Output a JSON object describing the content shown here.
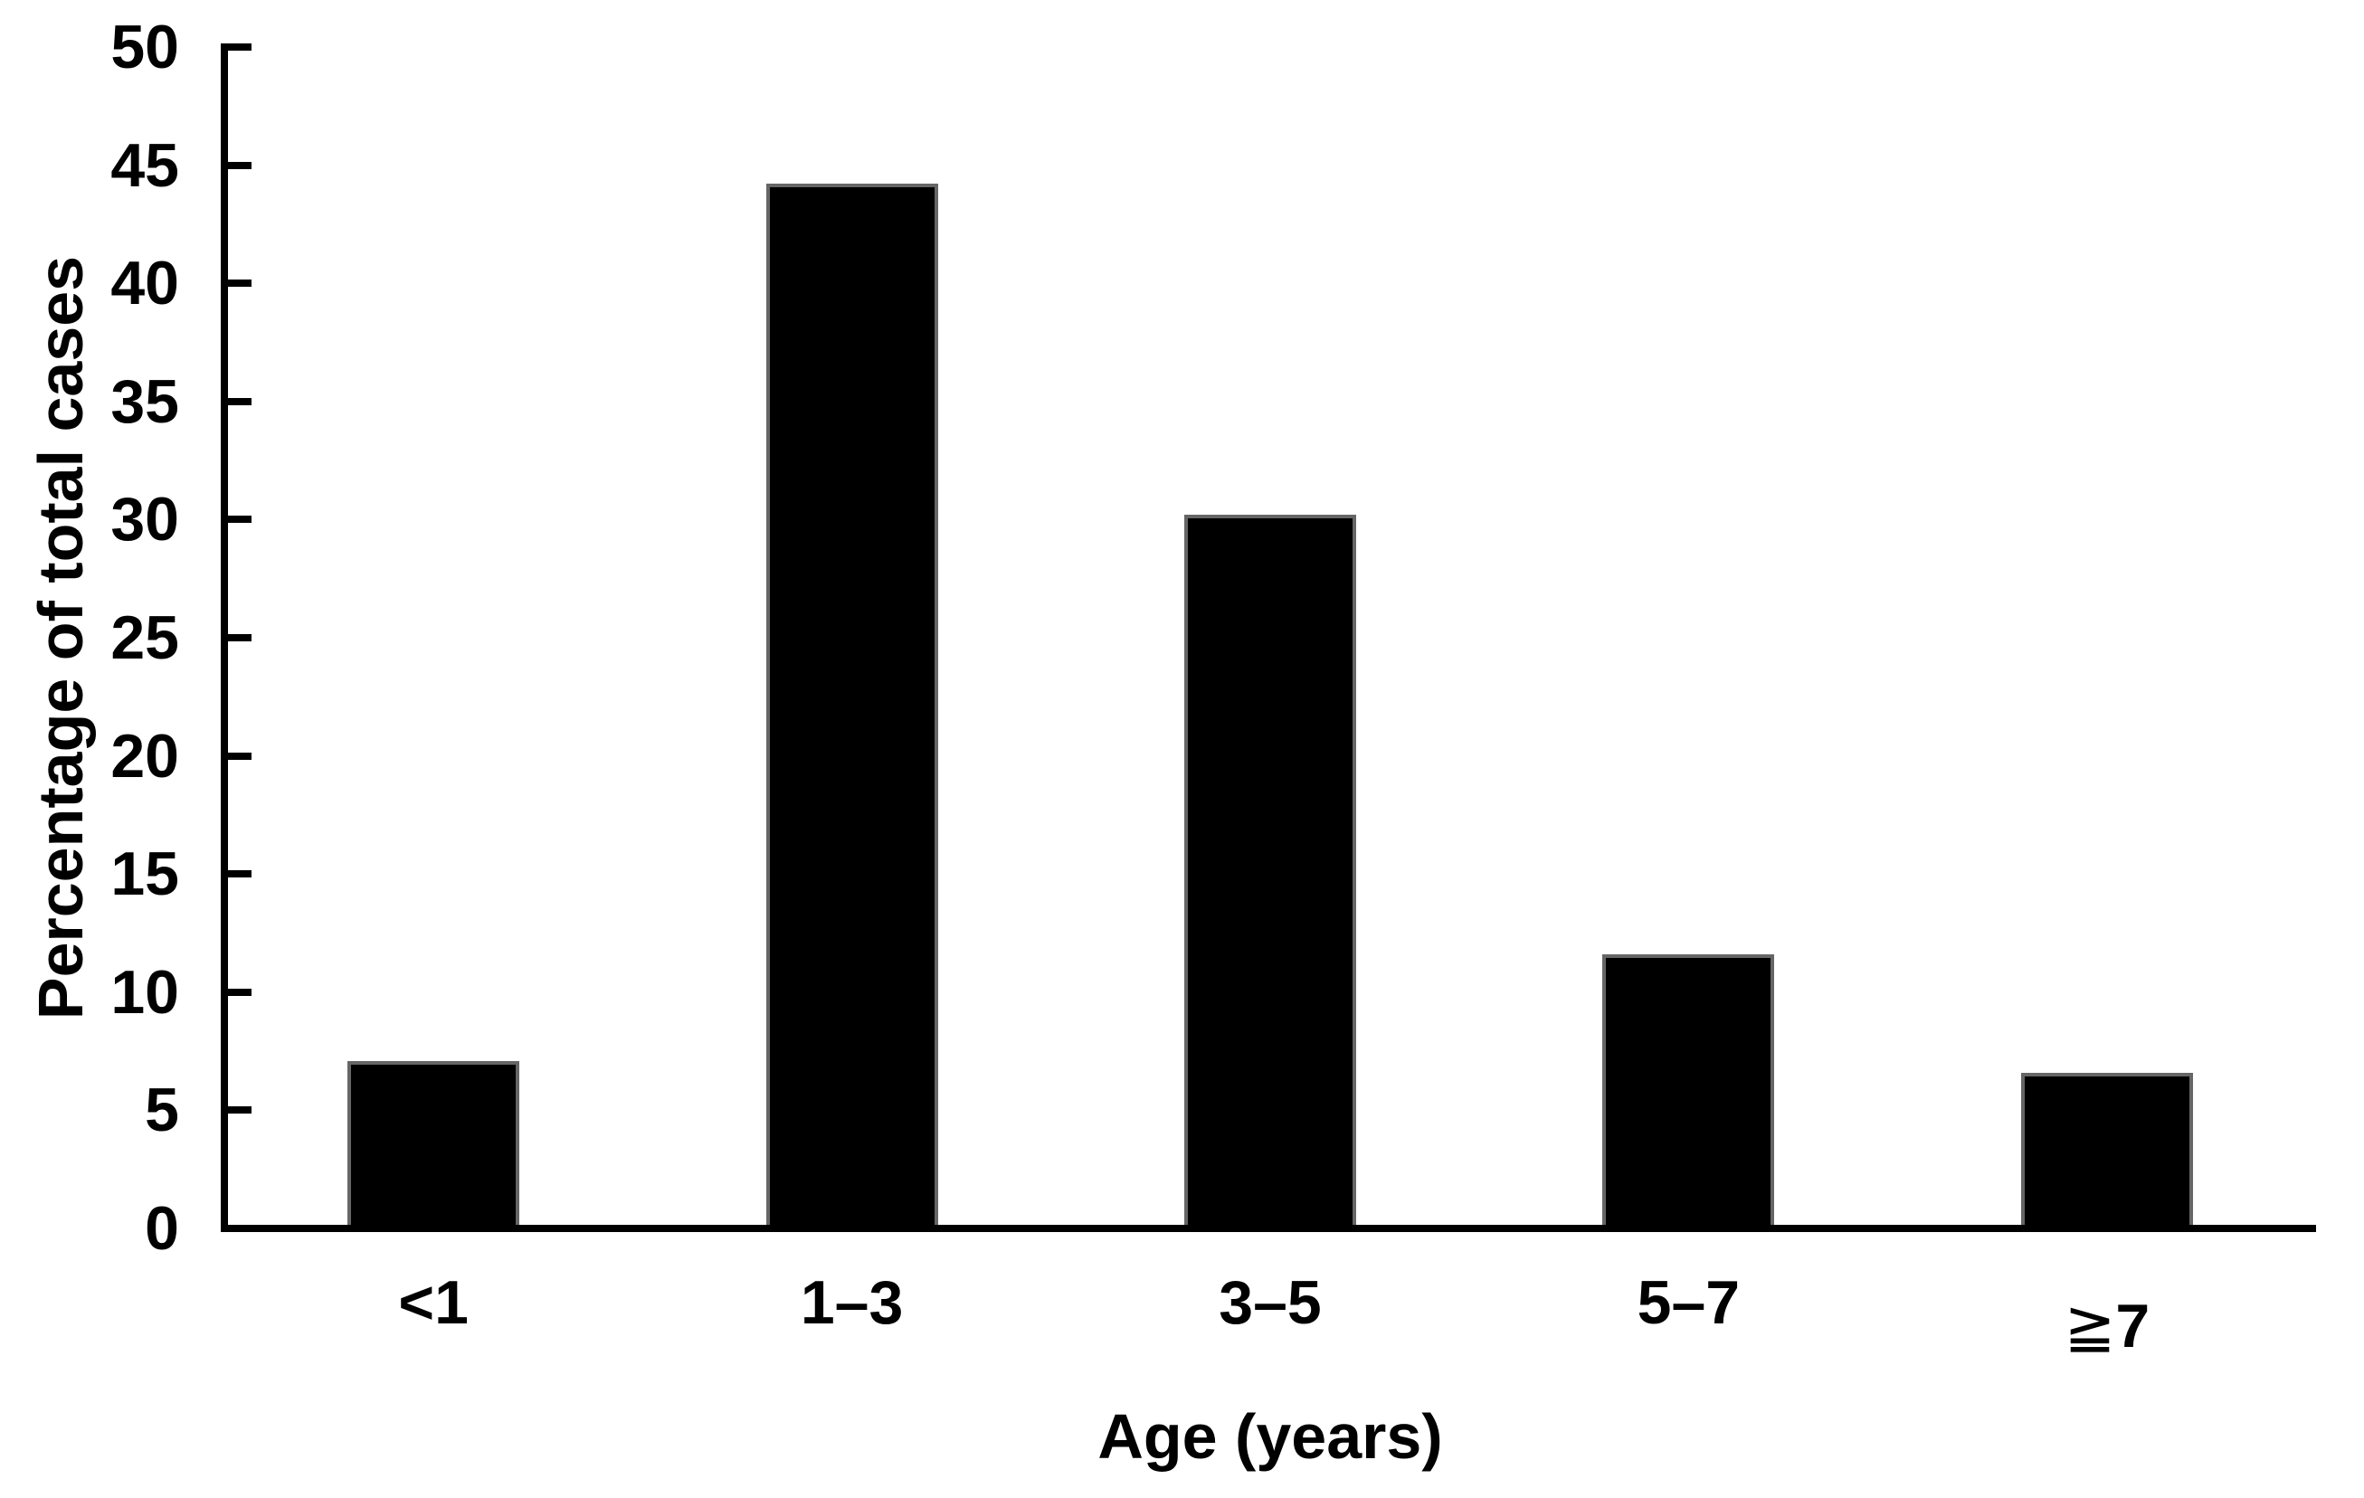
{
  "chart_data": {
    "type": "bar",
    "categories": [
      "<1",
      "1–3",
      "3–5",
      "5–7",
      "≧7"
    ],
    "values": [
      7.1,
      44.2,
      30.2,
      11.6,
      6.6
    ],
    "title": "",
    "xlabel": "Age (years)",
    "ylabel": "Percentage of total cases",
    "ylim": [
      0,
      50
    ],
    "ytick_step": 5,
    "grid": false,
    "legend": false,
    "bar_fill": "#000000",
    "bar_edge": "#666666",
    "axis_color": "#000000",
    "background": "#ffffff"
  }
}
